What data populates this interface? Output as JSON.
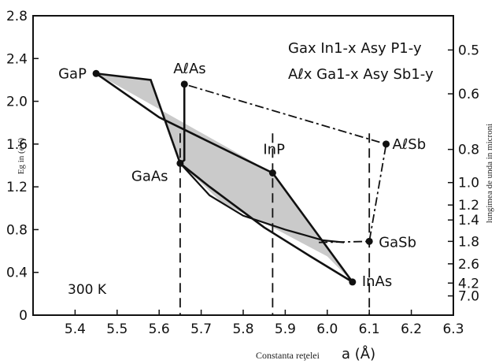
{
  "chart_data": {
    "type": "scatter",
    "xlabel": "Constanta reţelei",
    "xlabel_symbol": "a (Å)",
    "ylabel": "Eg in (eV)",
    "y2label": "lungimea de unda in microni",
    "xlim": [
      5.3,
      6.3
    ],
    "ylim": [
      0,
      2.8
    ],
    "x_ticks": [
      "5.4",
      "5.5",
      "5.6",
      "5.7",
      "5.8",
      "5.9",
      "6.0",
      "6.1",
      "6.2",
      "6.3"
    ],
    "y_ticks": [
      "0",
      "0.4",
      "0.8",
      "1.2",
      "1.6",
      "2.0",
      "2.4",
      "2.8"
    ],
    "y2_ticks": [
      {
        "label": "0.5",
        "ev": 2.48
      },
      {
        "label": "0.6",
        "ev": 2.07
      },
      {
        "label": "0.8",
        "ev": 1.55
      },
      {
        "label": "1.0",
        "ev": 1.24
      },
      {
        "label": "1.2",
        "ev": 1.03
      },
      {
        "label": "1.4",
        "ev": 0.89
      },
      {
        "label": "1.8",
        "ev": 0.69
      },
      {
        "label": "2.6",
        "ev": 0.48
      },
      {
        "label": "4.2",
        "ev": 0.3
      },
      {
        "label": "7.0",
        "ev": 0.18
      }
    ],
    "points": [
      {
        "name": "GaP",
        "x": 5.45,
        "y": 2.26
      },
      {
        "name": "AℓAs",
        "x": 5.66,
        "y": 2.16
      },
      {
        "name": "AℓSb",
        "x": 6.14,
        "y": 1.6
      },
      {
        "name": "InP",
        "x": 5.87,
        "y": 1.33
      },
      {
        "name": "GaAs",
        "x": 5.65,
        "y": 1.42
      },
      {
        "name": "GaSb",
        "x": 6.1,
        "y": 0.69
      },
      {
        "name": "InAs",
        "x": 6.06,
        "y": 0.31
      }
    ],
    "formulas": {
      "line1": "Gax In1-x Asy  P1-y",
      "line2": "Aℓx Ga1-x Asy  Sb1-y"
    },
    "annotation": "300 K",
    "vertical_dashed_x": [
      5.65,
      5.87,
      6.1
    ]
  }
}
